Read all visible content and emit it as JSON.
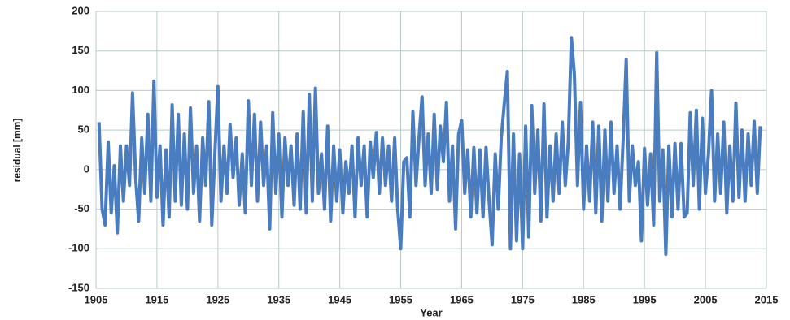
{
  "chart_data": {
    "type": "line",
    "x_label": "Year",
    "y_label": "residual [mm]",
    "x": [
      1905.5,
      1906,
      1906.5,
      1907,
      1907.5,
      1908,
      1908.5,
      1909,
      1909.5,
      1910,
      1910.5,
      1911,
      1911.5,
      1912,
      1912.5,
      1913,
      1913.5,
      1914,
      1914.5,
      1915,
      1915.5,
      1916,
      1916.5,
      1917,
      1917.5,
      1918,
      1918.5,
      1919,
      1919.5,
      1920,
      1920.5,
      1921,
      1921.5,
      1922,
      1922.5,
      1923,
      1923.5,
      1924,
      1924.5,
      1925,
      1925.5,
      1926,
      1926.5,
      1927,
      1927.5,
      1928,
      1928.5,
      1929,
      1929.5,
      1930,
      1930.5,
      1931,
      1931.5,
      1932,
      1932.5,
      1933,
      1933.5,
      1934,
      1934.5,
      1935,
      1935.5,
      1936,
      1936.5,
      1937,
      1937.5,
      1938,
      1938.5,
      1939,
      1939.5,
      1940,
      1940.5,
      1941,
      1941.5,
      1942,
      1942.5,
      1943,
      1943.5,
      1944,
      1944.5,
      1945,
      1945.5,
      1946,
      1946.5,
      1947,
      1947.5,
      1948,
      1948.5,
      1949,
      1949.5,
      1950,
      1950.5,
      1951,
      1951.5,
      1952,
      1952.5,
      1953,
      1953.5,
      1954,
      1954.5,
      1955,
      1955.5,
      1956,
      1956.5,
      1957,
      1957.5,
      1958,
      1958.5,
      1959,
      1959.5,
      1960,
      1960.5,
      1961,
      1961.5,
      1962,
      1962.5,
      1963,
      1963.5,
      1964,
      1964.5,
      1965,
      1965.5,
      1966,
      1966.5,
      1967,
      1967.5,
      1968,
      1968.5,
      1969,
      1969.5,
      1970,
      1970.5,
      1971,
      1971.5,
      1972,
      1972.5,
      1973,
      1973.5,
      1974,
      1974.5,
      1975,
      1975.5,
      1976,
      1976.5,
      1977,
      1977.5,
      1978,
      1978.5,
      1979,
      1979.5,
      1980,
      1980.5,
      1981,
      1981.5,
      1982,
      1982.5,
      1983,
      1983.5,
      1984,
      1984.5,
      1985,
      1985.5,
      1986,
      1986.5,
      1987,
      1987.5,
      1988,
      1988.5,
      1989,
      1989.5,
      1990,
      1990.5,
      1991,
      1991.5,
      1992,
      1992.5,
      1993,
      1993.5,
      1994,
      1994.5,
      1995,
      1995.5,
      1996,
      1996.5,
      1997,
      1997.5,
      1998,
      1998.5,
      1999,
      1999.5,
      2000,
      2000.5,
      2001,
      2001.5,
      2002,
      2002.5,
      2003,
      2003.5,
      2004,
      2004.5,
      2005,
      2005.5,
      2006,
      2006.5,
      2007,
      2007.5,
      2008,
      2008.5,
      2009,
      2009.5,
      2010,
      2010.5,
      2011,
      2011.5,
      2012,
      2012.5,
      2013,
      2013.5,
      2014
    ],
    "series": [
      {
        "color": "#4a7cc0",
        "values": [
          60,
          -50,
          -70,
          35,
          -55,
          5,
          -80,
          30,
          -40,
          30,
          -20,
          97,
          -10,
          -65,
          40,
          -30,
          70,
          -40,
          112,
          -35,
          30,
          -70,
          25,
          -60,
          82,
          -40,
          70,
          -45,
          45,
          -50,
          78,
          -30,
          30,
          -65,
          40,
          -20,
          86,
          -70,
          20,
          105,
          -40,
          30,
          -30,
          57,
          -10,
          40,
          -45,
          20,
          -55,
          87,
          -20,
          70,
          -40,
          60,
          -20,
          30,
          -75,
          72,
          -30,
          45,
          -60,
          40,
          -20,
          30,
          -45,
          45,
          -50,
          73,
          -55,
          95,
          -40,
          103,
          -30,
          20,
          -50,
          55,
          -65,
          30,
          -40,
          25,
          -55,
          10,
          -30,
          30,
          -60,
          40,
          -20,
          30,
          -60,
          35,
          -10,
          47,
          -30,
          40,
          -20,
          30,
          -40,
          40,
          -50,
          -100,
          10,
          15,
          -60,
          73,
          -20,
          40,
          92,
          -20,
          45,
          -30,
          70,
          -25,
          55,
          10,
          85,
          -40,
          30,
          -75,
          45,
          62,
          -30,
          25,
          -60,
          28,
          -55,
          25,
          -60,
          28,
          -40,
          -95,
          20,
          -50,
          40,
          84,
          124,
          -100,
          45,
          -90,
          20,
          -100,
          55,
          -85,
          81,
          -30,
          50,
          -65,
          83,
          -60,
          30,
          -40,
          45,
          -30,
          60,
          -20,
          35,
          167,
          120,
          -20,
          85,
          -50,
          30,
          -40,
          60,
          -55,
          55,
          -65,
          50,
          -40,
          60,
          -30,
          30,
          -50,
          40,
          139,
          -40,
          30,
          -20,
          10,
          -90,
          27,
          -45,
          20,
          -70,
          148,
          -40,
          25,
          -107,
          30,
          -60,
          33,
          -50,
          33,
          -60,
          -55,
          72,
          -20,
          75,
          -50,
          65,
          -30,
          20,
          100,
          -40,
          45,
          -30,
          60,
          -55,
          30,
          -40,
          84,
          -35,
          50,
          -40,
          45,
          -20,
          61,
          -30,
          55
        ]
      }
    ],
    "xlim": [
      1905,
      2015
    ],
    "xticks": [
      1905,
      1915,
      1925,
      1935,
      1945,
      1955,
      1965,
      1975,
      1985,
      1995,
      2005,
      2015
    ],
    "ylim": [
      -150,
      200
    ],
    "yticks": [
      -150,
      -100,
      -50,
      0,
      50,
      100,
      150,
      200
    ],
    "grid": true
  }
}
